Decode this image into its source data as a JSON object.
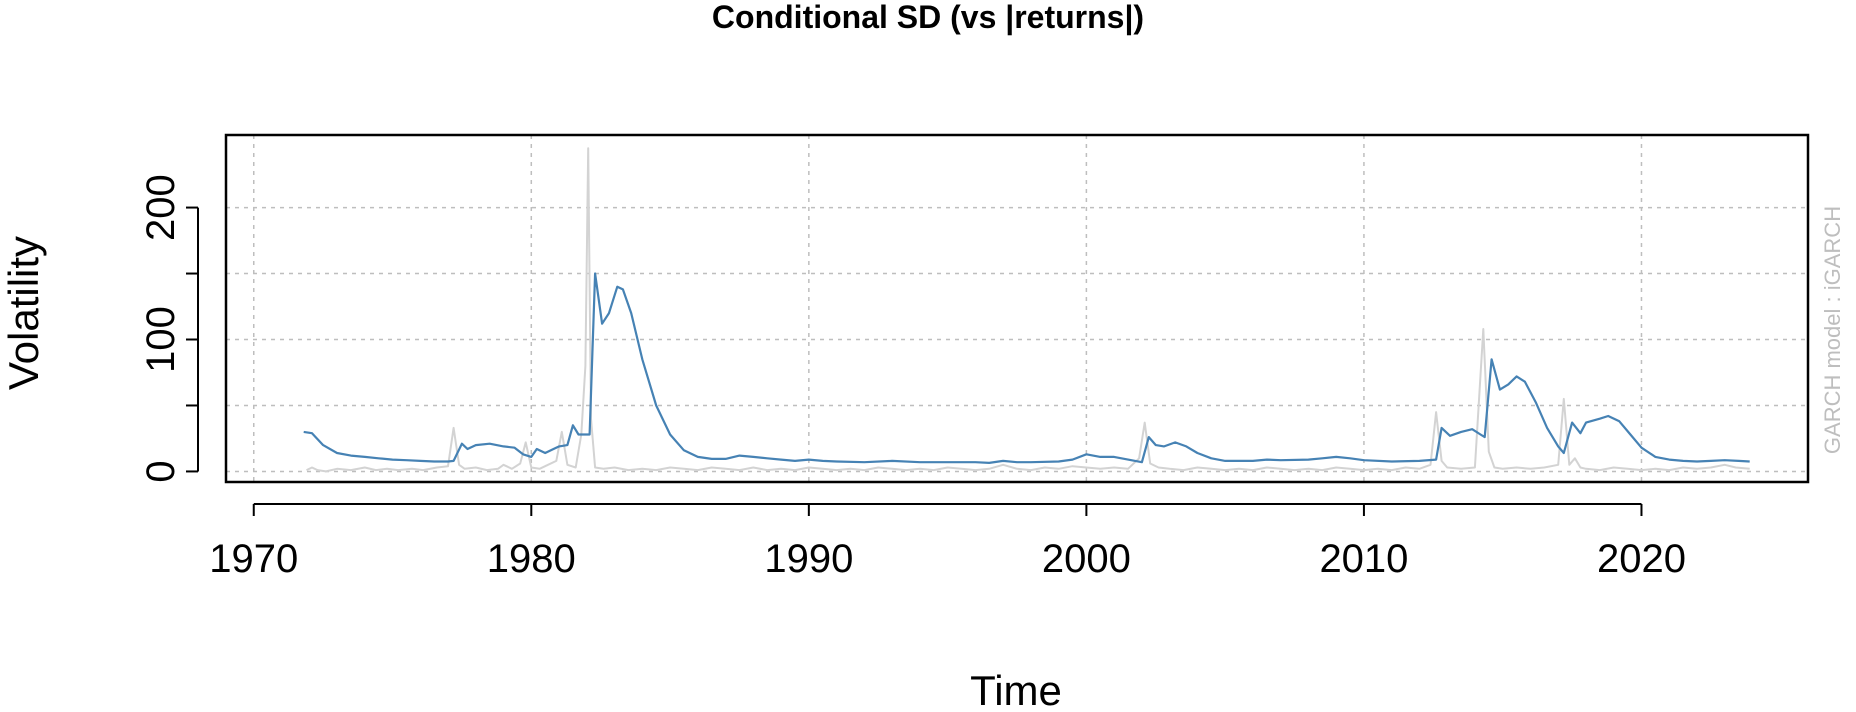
{
  "chart_data": {
    "type": "line",
    "title": "Conditional SD (vs |returns|)",
    "xlabel": "Time",
    "ylabel": "Volatility",
    "side_note": "GARCH model : iGARCH",
    "xlim": [
      1969.0,
      2026.0
    ],
    "ylim": [
      -8,
      255
    ],
    "x_ticks": [
      1970,
      1980,
      1990,
      2000,
      2010,
      2020
    ],
    "y_ticks": [
      0,
      50,
      100,
      150,
      200
    ],
    "y_tick_labels": [
      "0",
      "",
      "100",
      "",
      "200"
    ],
    "grid": true,
    "colors": {
      "conditional_sd": "#4682B4",
      "abs_returns": "#D3D3D3",
      "grid": "#BEBEBE",
      "axis": "#000000"
    },
    "series": [
      {
        "key": "abs_returns",
        "points": [
          [
            1971.9,
            1
          ],
          [
            1972.1,
            3
          ],
          [
            1972.3,
            1
          ],
          [
            1972.6,
            0
          ],
          [
            1973.0,
            2
          ],
          [
            1973.5,
            1
          ],
          [
            1974.0,
            3
          ],
          [
            1974.4,
            1
          ],
          [
            1974.8,
            2
          ],
          [
            1975.2,
            1
          ],
          [
            1975.7,
            2
          ],
          [
            1976.1,
            1
          ],
          [
            1976.6,
            3
          ],
          [
            1977.0,
            4
          ],
          [
            1977.2,
            33
          ],
          [
            1977.4,
            5
          ],
          [
            1977.6,
            2
          ],
          [
            1978.0,
            3
          ],
          [
            1978.4,
            1
          ],
          [
            1978.8,
            2
          ],
          [
            1979.0,
            5
          ],
          [
            1979.3,
            2
          ],
          [
            1979.6,
            6
          ],
          [
            1979.8,
            22
          ],
          [
            1980.0,
            3
          ],
          [
            1980.3,
            2
          ],
          [
            1980.6,
            5
          ],
          [
            1980.9,
            8
          ],
          [
            1981.1,
            30
          ],
          [
            1981.3,
            5
          ],
          [
            1981.6,
            3
          ],
          [
            1981.8,
            28
          ],
          [
            1981.95,
            80
          ],
          [
            1982.05,
            245
          ],
          [
            1982.15,
            40
          ],
          [
            1982.3,
            3
          ],
          [
            1982.6,
            2
          ],
          [
            1983.0,
            3
          ],
          [
            1983.5,
            1
          ],
          [
            1984.0,
            2
          ],
          [
            1984.5,
            1
          ],
          [
            1985.0,
            3
          ],
          [
            1985.5,
            2
          ],
          [
            1986.0,
            1
          ],
          [
            1986.5,
            3
          ],
          [
            1987.0,
            2
          ],
          [
            1987.5,
            1
          ],
          [
            1988.0,
            3
          ],
          [
            1988.5,
            1
          ],
          [
            1989.0,
            2
          ],
          [
            1989.5,
            1
          ],
          [
            1990.0,
            3
          ],
          [
            1990.5,
            2
          ],
          [
            1991.0,
            1
          ],
          [
            1991.5,
            2
          ],
          [
            1992.0,
            1
          ],
          [
            1992.5,
            3
          ],
          [
            1993.0,
            2
          ],
          [
            1993.5,
            1
          ],
          [
            1994.0,
            2
          ],
          [
            1994.5,
            1
          ],
          [
            1995.0,
            3
          ],
          [
            1995.5,
            2
          ],
          [
            1996.0,
            1
          ],
          [
            1996.5,
            2
          ],
          [
            1997.0,
            5
          ],
          [
            1997.5,
            2
          ],
          [
            1998.0,
            1
          ],
          [
            1998.5,
            3
          ],
          [
            1999.0,
            2
          ],
          [
            1999.5,
            4
          ],
          [
            2000.0,
            3
          ],
          [
            2000.5,
            2
          ],
          [
            2001.0,
            3
          ],
          [
            2001.5,
            2
          ],
          [
            2001.9,
            10
          ],
          [
            2002.1,
            37
          ],
          [
            2002.3,
            6
          ],
          [
            2002.6,
            3
          ],
          [
            2003.0,
            2
          ],
          [
            2003.5,
            1
          ],
          [
            2004.0,
            3
          ],
          [
            2004.5,
            2
          ],
          [
            2005.0,
            1
          ],
          [
            2005.5,
            2
          ],
          [
            2006.0,
            1
          ],
          [
            2006.5,
            3
          ],
          [
            2007.0,
            2
          ],
          [
            2007.5,
            1
          ],
          [
            2008.0,
            2
          ],
          [
            2008.5,
            1
          ],
          [
            2009.0,
            3
          ],
          [
            2009.5,
            2
          ],
          [
            2010.0,
            1
          ],
          [
            2010.5,
            2
          ],
          [
            2011.0,
            1
          ],
          [
            2011.5,
            3
          ],
          [
            2012.0,
            2
          ],
          [
            2012.4,
            5
          ],
          [
            2012.6,
            45
          ],
          [
            2012.8,
            8
          ],
          [
            2013.0,
            3
          ],
          [
            2013.5,
            2
          ],
          [
            2014.0,
            3
          ],
          [
            2014.3,
            108
          ],
          [
            2014.5,
            15
          ],
          [
            2014.7,
            3
          ],
          [
            2015.0,
            2
          ],
          [
            2015.5,
            3
          ],
          [
            2016.0,
            2
          ],
          [
            2016.5,
            3
          ],
          [
            2017.0,
            5
          ],
          [
            2017.2,
            55
          ],
          [
            2017.4,
            5
          ],
          [
            2017.6,
            10
          ],
          [
            2017.8,
            3
          ],
          [
            2018.0,
            2
          ],
          [
            2018.5,
            1
          ],
          [
            2019.0,
            3
          ],
          [
            2019.5,
            2
          ],
          [
            2020.0,
            1
          ],
          [
            2020.5,
            2
          ],
          [
            2021.0,
            1
          ],
          [
            2021.5,
            3
          ],
          [
            2022.0,
            2
          ],
          [
            2022.5,
            3
          ],
          [
            2023.0,
            5
          ],
          [
            2023.4,
            3
          ],
          [
            2023.9,
            2
          ]
        ]
      },
      {
        "key": "conditional_sd",
        "points": [
          [
            1971.8,
            30
          ],
          [
            1972.1,
            29
          ],
          [
            1972.5,
            20
          ],
          [
            1973.0,
            14
          ],
          [
            1973.5,
            12
          ],
          [
            1974.0,
            11
          ],
          [
            1974.5,
            10
          ],
          [
            1975.0,
            9
          ],
          [
            1975.5,
            8.5
          ],
          [
            1976.0,
            8
          ],
          [
            1976.5,
            7.5
          ],
          [
            1977.0,
            7.5
          ],
          [
            1977.2,
            8
          ],
          [
            1977.5,
            21
          ],
          [
            1977.7,
            17
          ],
          [
            1978.0,
            20
          ],
          [
            1978.5,
            21
          ],
          [
            1979.0,
            19
          ],
          [
            1979.4,
            18
          ],
          [
            1979.7,
            13
          ],
          [
            1980.0,
            11
          ],
          [
            1980.2,
            17
          ],
          [
            1980.5,
            14
          ],
          [
            1980.8,
            17
          ],
          [
            1981.0,
            19
          ],
          [
            1981.3,
            20
          ],
          [
            1981.5,
            35
          ],
          [
            1981.7,
            28
          ],
          [
            1982.0,
            28
          ],
          [
            1982.1,
            28
          ],
          [
            1982.3,
            150
          ],
          [
            1982.55,
            112
          ],
          [
            1982.8,
            120
          ],
          [
            1983.1,
            140
          ],
          [
            1983.3,
            138
          ],
          [
            1983.6,
            120
          ],
          [
            1984.0,
            85
          ],
          [
            1984.5,
            50
          ],
          [
            1985.0,
            28
          ],
          [
            1985.5,
            16
          ],
          [
            1986.0,
            11
          ],
          [
            1986.5,
            9.5
          ],
          [
            1987.0,
            9.5
          ],
          [
            1987.5,
            12
          ],
          [
            1988.0,
            11
          ],
          [
            1988.5,
            10
          ],
          [
            1989.0,
            9
          ],
          [
            1989.5,
            8
          ],
          [
            1990.0,
            9
          ],
          [
            1990.5,
            8
          ],
          [
            1991.0,
            7.5
          ],
          [
            1992.0,
            7
          ],
          [
            1993.0,
            8
          ],
          [
            1994.0,
            7
          ],
          [
            1995.0,
            7
          ],
          [
            1996.0,
            7
          ],
          [
            1996.5,
            6.5
          ],
          [
            1997.0,
            8
          ],
          [
            1997.5,
            7
          ],
          [
            1998.0,
            7
          ],
          [
            1999.0,
            7.5
          ],
          [
            1999.5,
            9
          ],
          [
            2000.0,
            13
          ],
          [
            2000.5,
            11
          ],
          [
            2001.0,
            11
          ],
          [
            2001.5,
            9
          ],
          [
            2002.0,
            7
          ],
          [
            2002.25,
            26
          ],
          [
            2002.5,
            20
          ],
          [
            2002.8,
            19
          ],
          [
            2003.2,
            22
          ],
          [
            2003.6,
            19
          ],
          [
            2004.0,
            14
          ],
          [
            2004.5,
            10
          ],
          [
            2005.0,
            8
          ],
          [
            2006.0,
            8
          ],
          [
            2006.5,
            9
          ],
          [
            2007.0,
            8.5
          ],
          [
            2008.0,
            9
          ],
          [
            2008.5,
            10
          ],
          [
            2009.0,
            11
          ],
          [
            2009.5,
            10
          ],
          [
            2010.0,
            8.5
          ],
          [
            2011.0,
            7.5
          ],
          [
            2012.0,
            8
          ],
          [
            2012.6,
            9
          ],
          [
            2012.8,
            33
          ],
          [
            2013.1,
            27
          ],
          [
            2013.5,
            30
          ],
          [
            2013.9,
            32
          ],
          [
            2014.2,
            28
          ],
          [
            2014.35,
            26
          ],
          [
            2014.6,
            85
          ],
          [
            2014.9,
            62
          ],
          [
            2015.2,
            66
          ],
          [
            2015.5,
            72
          ],
          [
            2015.8,
            68
          ],
          [
            2016.2,
            52
          ],
          [
            2016.6,
            33
          ],
          [
            2017.0,
            19
          ],
          [
            2017.2,
            14
          ],
          [
            2017.5,
            37
          ],
          [
            2017.8,
            29
          ],
          [
            2018.0,
            37
          ],
          [
            2018.5,
            40
          ],
          [
            2018.8,
            42
          ],
          [
            2019.2,
            38
          ],
          [
            2019.6,
            28
          ],
          [
            2020.0,
            18
          ],
          [
            2020.5,
            11
          ],
          [
            2021.0,
            9
          ],
          [
            2021.5,
            8
          ],
          [
            2022.0,
            7.5
          ],
          [
            2022.5,
            8
          ],
          [
            2023.0,
            8.5
          ],
          [
            2023.5,
            8
          ],
          [
            2023.9,
            7.5
          ]
        ]
      }
    ]
  }
}
